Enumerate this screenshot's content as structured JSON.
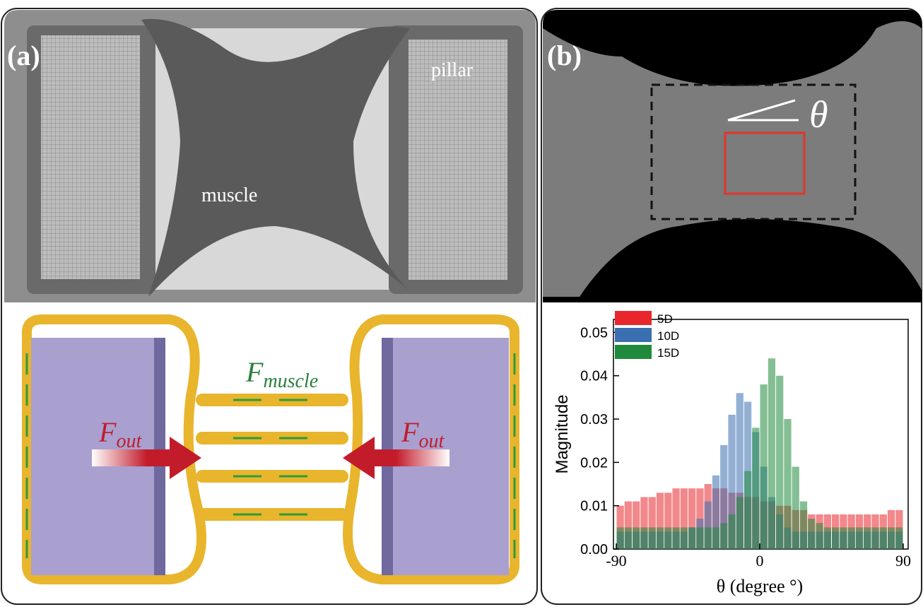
{
  "panel_a": {
    "label": "(a)",
    "pillar": "pillar",
    "muscle": "muscle",
    "force_muscle": {
      "symbol": "F",
      "subscript": "muscle"
    },
    "force_out_left": {
      "symbol": "F",
      "subscript": "out"
    },
    "force_out_right": {
      "symbol": "F",
      "subscript": "out"
    }
  },
  "panel_b": {
    "label": "(b)",
    "angle": "θ"
  },
  "chart_data": {
    "type": "histogram",
    "xlabel": "θ (degree °)",
    "ylabel": "Magnitude",
    "xlim": [
      -90,
      90
    ],
    "xticks": [
      -90,
      0,
      90
    ],
    "ylim": [
      0,
      0.053
    ],
    "yticks": [
      {
        "value": 0,
        "label": "0.00"
      },
      0.01,
      0.02,
      0.03,
      0.04,
      0.05
    ],
    "legend": "upper left",
    "bins": [
      -90,
      -85,
      -80,
      -75,
      -70,
      -65,
      -60,
      -55,
      -50,
      -45,
      -40,
      -35,
      -30,
      -25,
      -20,
      -15,
      -10,
      -5,
      0,
      5,
      10,
      15,
      20,
      25,
      30,
      35,
      40,
      45,
      50,
      55,
      60,
      65,
      70,
      75,
      80,
      85,
      90
    ],
    "series": [
      {
        "name": "5D",
        "color": "#e8262b",
        "values": [
          0.01,
          0.011,
          0.011,
          0.012,
          0.012,
          0.013,
          0.013,
          0.014,
          0.014,
          0.014,
          0.014,
          0.015,
          0.014,
          0.014,
          0.013,
          0.013,
          0.012,
          0.012,
          0.011,
          0.011,
          0.01,
          0.01,
          0.009,
          0.009,
          0.008,
          0.008,
          0.008,
          0.008,
          0.008,
          0.008,
          0.008,
          0.008,
          0.008,
          0.008,
          0.009,
          0.009
        ]
      },
      {
        "name": "10D",
        "color": "#3a6fb0",
        "values": [
          0.004,
          0.004,
          0.004,
          0.004,
          0.004,
          0.004,
          0.004,
          0.004,
          0.004,
          0.005,
          0.007,
          0.011,
          0.017,
          0.024,
          0.031,
          0.036,
          0.034,
          0.027,
          0.019,
          0.012,
          0.008,
          0.005,
          0.004,
          0.004,
          0.004,
          0.004,
          0.004,
          0.004,
          0.004,
          0.004,
          0.004,
          0.004,
          0.004,
          0.004,
          0.004,
          0.004
        ]
      },
      {
        "name": "15D",
        "color": "#1f8a3c",
        "values": [
          0.005,
          0.005,
          0.005,
          0.005,
          0.005,
          0.005,
          0.005,
          0.005,
          0.005,
          0.005,
          0.005,
          0.005,
          0.005,
          0.006,
          0.008,
          0.012,
          0.018,
          0.028,
          0.038,
          0.044,
          0.04,
          0.03,
          0.019,
          0.011,
          0.007,
          0.006,
          0.005,
          0.005,
          0.005,
          0.005,
          0.005,
          0.005,
          0.005,
          0.005,
          0.005,
          0.005
        ]
      }
    ]
  }
}
